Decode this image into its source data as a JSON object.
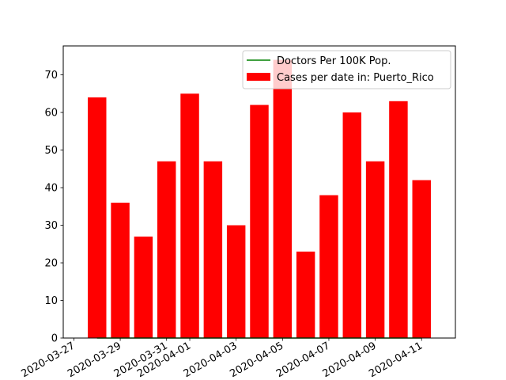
{
  "chart_data": {
    "type": "bar",
    "x_dates": [
      "2020-03-28",
      "2020-03-29",
      "2020-03-30",
      "2020-03-31",
      "2020-04-01",
      "2020-04-02",
      "2020-04-03",
      "2020-04-04",
      "2020-04-05",
      "2020-04-06",
      "2020-04-07",
      "2020-04-08",
      "2020-04-09",
      "2020-04-10",
      "2020-04-11"
    ],
    "series": [
      {
        "name": "Cases per date in: Puerto_Rico",
        "kind": "bar",
        "color": "#ff0000",
        "values": [
          64,
          36,
          27,
          47,
          65,
          47,
          30,
          62,
          74,
          23,
          38,
          60,
          47,
          63,
          42
        ]
      },
      {
        "name": "Doctors Per 100K Pop.",
        "kind": "line",
        "color": "#008000",
        "values": [
          0,
          0,
          0,
          0,
          0,
          0,
          0,
          0,
          0,
          0,
          0,
          0,
          0,
          0,
          0
        ]
      }
    ],
    "xlim": [
      "2020-03-26T13:00",
      "2020-04-12T11:00"
    ],
    "ylim": [
      0,
      77.7
    ],
    "y_ticks": [
      0,
      10,
      20,
      30,
      40,
      50,
      60,
      70
    ],
    "x_ticks": [
      "2020-03-27",
      "2020-03-29",
      "2020-03-31",
      "2020-04-01",
      "2020-04-03",
      "2020-04-05",
      "2020-04-07",
      "2020-04-09",
      "2020-04-11"
    ],
    "title": "",
    "xlabel": "",
    "ylabel": "",
    "legend_position": "upper right",
    "grid": false
  }
}
